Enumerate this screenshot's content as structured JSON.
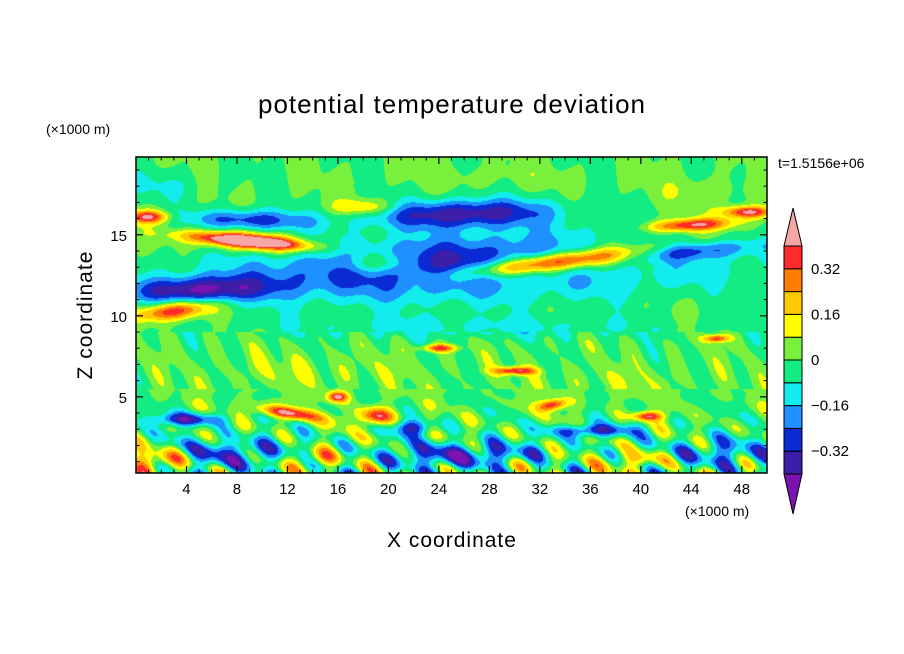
{
  "chart_data": {
    "type": "heatmap",
    "title": "potential temperature deviation",
    "xlabel": "X coordinate",
    "ylabel": "Z coordinate",
    "x_units": "(×1000 m)",
    "y_units": "(×1000 m)",
    "time_label": "t=1.5156e+06",
    "xlim": [
      0,
      50
    ],
    "ylim": [
      0.3,
      19.8
    ],
    "x_ticks": [
      4,
      8,
      12,
      16,
      20,
      24,
      28,
      32,
      36,
      40,
      44,
      48
    ],
    "x_tick_labels": [
      "4",
      "8",
      "12",
      "16",
      "20",
      "24",
      "28",
      "32",
      "36",
      "40",
      "44",
      "48"
    ],
    "y_ticks": [
      5,
      10,
      15
    ],
    "y_tick_labels": [
      "5",
      "10",
      "15"
    ],
    "colorbar": {
      "levels": [
        -0.4,
        -0.32,
        -0.24,
        -0.16,
        -0.08,
        0,
        0.08,
        0.16,
        0.24,
        0.32,
        0.4
      ],
      "tick_values": [
        0.32,
        0.16,
        0,
        -0.16,
        -0.32
      ],
      "tick_labels": [
        "0.32",
        "0.16",
        "0",
        "−0.16",
        "−0.32"
      ],
      "colors": [
        "#7b12b1",
        "#3c1ea8",
        "#0a2ad4",
        "#1e90ff",
        "#12ecec",
        "#12ec82",
        "#79f03c",
        "#ffff00",
        "#ffc800",
        "#ff7e00",
        "#ff2a2a",
        "#f7a6a6"
      ],
      "extend": "both"
    },
    "features": [
      {
        "x": 27,
        "z": 13.0,
        "rx": 23,
        "rz": 2.3,
        "angle": -5,
        "value": -0.42
      },
      {
        "x": 5,
        "z": 11.6,
        "rx": 7,
        "rz": 1.0,
        "angle": -4,
        "value": -0.36
      },
      {
        "x": 26,
        "z": 16.3,
        "rx": 9,
        "rz": 1.1,
        "angle": -3,
        "value": -0.38
      },
      {
        "x": 9,
        "z": 15.9,
        "rx": 6,
        "rz": 0.8,
        "angle": 3,
        "value": -0.3
      },
      {
        "x": 43,
        "z": 14.0,
        "rx": 8,
        "rz": 0.7,
        "angle": -8,
        "value": -0.3
      },
      {
        "x": 35,
        "z": 13.3,
        "rx": 13,
        "rz": 1.4,
        "angle": -13,
        "value": 0.28
      },
      {
        "x": 34,
        "z": 13.4,
        "rx": 11,
        "rz": 0.65,
        "angle": -14,
        "value": 0.45
      },
      {
        "x": 9,
        "z": 14.6,
        "rx": 6.5,
        "rz": 0.75,
        "angle": 10,
        "value": 0.3
      },
      {
        "x": 9,
        "z": 14.6,
        "rx": 5.5,
        "rz": 0.45,
        "angle": 10,
        "value": 0.45
      },
      {
        "x": 19,
        "z": 13.2,
        "rx": 3.5,
        "rz": 0.9,
        "angle": 0,
        "value": 0.26
      },
      {
        "x": 18,
        "z": 16.7,
        "rx": 3,
        "rz": 0.6,
        "angle": 0,
        "value": 0.22
      },
      {
        "x": 3,
        "z": 10.3,
        "rx": 4,
        "rz": 0.7,
        "angle": -16,
        "value": 0.42
      },
      {
        "x": 44,
        "z": 15.6,
        "rx": 4.5,
        "rz": 0.5,
        "angle": -6,
        "value": 0.42
      },
      {
        "x": 48.5,
        "z": 16.4,
        "rx": 2.5,
        "rz": 0.45,
        "angle": 0,
        "value": 0.45
      },
      {
        "x": 1,
        "z": 16.1,
        "rx": 2,
        "rz": 0.5,
        "angle": 0,
        "value": 0.42
      },
      {
        "x": 1.5,
        "z": 18.0,
        "rx": 5,
        "rz": 1.2,
        "angle": 0,
        "value": -0.08
      },
      {
        "x": 28,
        "z": 18.6,
        "rx": 8,
        "rz": 0.9,
        "angle": 0,
        "value": 0.04
      },
      {
        "x": 45,
        "z": 17.6,
        "rx": 6,
        "rz": 1.2,
        "angle": 0,
        "value": 0.06
      },
      {
        "x": 12,
        "z": 4.0,
        "rx": 3.5,
        "rz": 0.45,
        "angle": 18,
        "value": 0.42
      },
      {
        "x": 19,
        "z": 3.8,
        "rx": 1.6,
        "rz": 0.7,
        "angle": -35,
        "value": 0.42
      },
      {
        "x": 30,
        "z": 6.6,
        "rx": 2.0,
        "rz": 0.3,
        "angle": 0,
        "value": 0.42
      },
      {
        "x": 40.5,
        "z": 3.8,
        "rx": 1.5,
        "rz": 0.35,
        "angle": 0,
        "value": 0.4
      },
      {
        "x": 24,
        "z": 8.0,
        "rx": 1.8,
        "rz": 0.3,
        "angle": 0,
        "value": 0.36
      },
      {
        "x": 46,
        "z": 8.6,
        "rx": 1.2,
        "rz": 0.3,
        "angle": 0,
        "value": 0.38
      },
      {
        "x": 16,
        "z": 5.0,
        "rx": 1.0,
        "rz": 0.4,
        "angle": 0,
        "value": 0.42
      },
      {
        "x": 33,
        "z": 4.5,
        "rx": 1.5,
        "rz": 0.4,
        "angle": -30,
        "value": 0.4
      },
      {
        "x": 8,
        "z": 1.5,
        "rx": 6,
        "rz": 1.2,
        "angle": 0,
        "value": -0.26
      },
      {
        "x": 26,
        "z": 1.4,
        "rx": 8,
        "rz": 1.0,
        "angle": 0,
        "value": -0.3
      },
      {
        "x": 46,
        "z": 1.5,
        "rx": 5,
        "rz": 1.2,
        "angle": 0,
        "value": -0.22
      },
      {
        "x": 36,
        "z": 2.9,
        "rx": 4,
        "rz": 0.5,
        "angle": 0,
        "value": -0.34
      },
      {
        "x": 4,
        "z": 3.6,
        "rx": 3.5,
        "rz": 0.5,
        "angle": 0,
        "value": -0.34
      },
      {
        "x": 22,
        "z": 3.1,
        "rx": 2,
        "rz": 0.6,
        "angle": 0,
        "value": -0.3
      },
      {
        "x": 2,
        "z": 1.1,
        "rx": 2.5,
        "rz": 0.8,
        "angle": 0,
        "value": 0.3
      },
      {
        "x": 14,
        "z": 1.2,
        "rx": 2.5,
        "rz": 0.8,
        "angle": 0,
        "value": 0.26
      },
      {
        "x": 40,
        "z": 1.1,
        "rx": 2.5,
        "rz": 0.7,
        "angle": 0,
        "value": 0.22
      },
      {
        "x": 32,
        "z": 1.0,
        "rx": 2.5,
        "rz": 0.6,
        "angle": 0,
        "value": 0.12
      },
      {
        "x": 27,
        "z": 9.3,
        "rx": 20,
        "rz": 0.9,
        "angle": 0,
        "value": -0.1
      },
      {
        "x": 14,
        "z": 6.6,
        "rx": 10,
        "rz": 1.4,
        "angle": 0,
        "value": 0.06
      },
      {
        "x": 38,
        "z": 6.0,
        "rx": 8,
        "rz": 1.2,
        "angle": 0,
        "value": 0.05
      }
    ]
  }
}
